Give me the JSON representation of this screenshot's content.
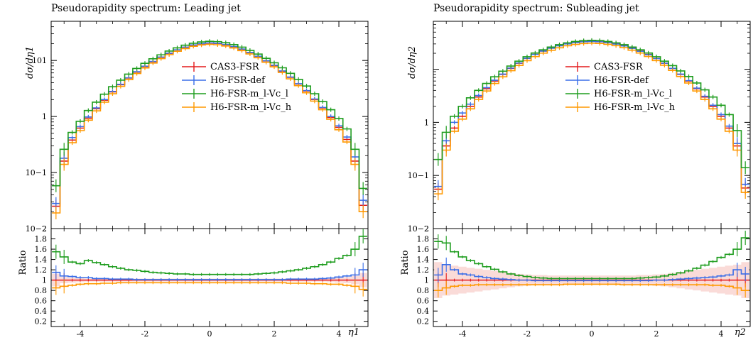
{
  "colors": {
    "cas3": "#e31a1c",
    "h6def": "#3a6ee8",
    "h6ml": "#1f9d1f",
    "h6mh": "#ff9900",
    "band": "#fadbd8"
  },
  "chart_data": [
    {
      "type": "line",
      "title": "Pseudorapidity spectrum: Leading jet",
      "xlabel": "η1",
      "ylabel": "dσ/dη1",
      "ratio_ylabel": "Ratio",
      "xlim": [
        -4.9,
        4.9
      ],
      "ylim": [
        0.01,
        50
      ],
      "yscale": "log",
      "ratio_ylim": [
        0.1,
        2.0
      ],
      "xticks": [
        "-4",
        "-2",
        "0",
        "2",
        "4"
      ],
      "yticks": [
        "10−2",
        "10−1",
        "1",
        "101"
      ],
      "ratio_yticks": [
        "0.2",
        "0.4",
        "0.6",
        "0.8",
        "1",
        "1.2",
        "1.4",
        "1.6",
        "1.8",
        "2"
      ],
      "legend_position": "center-right",
      "x": [
        -4.75,
        -4.5,
        -4.25,
        -4.0,
        -3.75,
        -3.5,
        -3.25,
        -3.0,
        -2.75,
        -2.5,
        -2.25,
        -2.0,
        -1.75,
        -1.5,
        -1.25,
        -1.0,
        -0.75,
        -0.5,
        -0.25,
        0.0,
        0.25,
        0.5,
        0.75,
        1.0,
        1.25,
        1.5,
        1.75,
        2.0,
        2.25,
        2.5,
        2.75,
        3.0,
        3.25,
        3.5,
        3.75,
        4.0,
        4.25,
        4.5,
        4.75
      ],
      "series": [
        {
          "name": "CAS3-FSR",
          "values": [
            0.025,
            0.16,
            0.38,
            0.62,
            0.93,
            1.38,
            1.95,
            2.75,
            3.7,
            4.85,
            6.2,
            7.8,
            9.5,
            11.4,
            13.4,
            15.4,
            17.2,
            18.8,
            19.9,
            20.4,
            20.1,
            19.1,
            17.6,
            15.8,
            13.8,
            11.8,
            9.8,
            8.1,
            6.4,
            5.0,
            3.8,
            2.85,
            2.02,
            1.42,
            0.96,
            0.64,
            0.39,
            0.16,
            0.026
          ]
        },
        {
          "name": "H6-FSR-def",
          "values": [
            0.028,
            0.18,
            0.42,
            0.66,
            0.98,
            1.42,
            2.0,
            2.8,
            3.75,
            4.9,
            6.3,
            7.9,
            9.6,
            11.5,
            13.5,
            15.5,
            17.3,
            18.9,
            20.0,
            20.6,
            20.3,
            19.3,
            17.8,
            16.0,
            13.9,
            11.9,
            9.9,
            8.2,
            6.5,
            5.05,
            3.85,
            2.9,
            2.05,
            1.45,
            1.0,
            0.68,
            0.43,
            0.19,
            0.032
          ]
        },
        {
          "name": "H6-FSR-m_l-Vc_l",
          "values": [
            0.058,
            0.26,
            0.52,
            0.82,
            1.28,
            1.8,
            2.5,
            3.4,
            4.45,
            5.7,
            7.2,
            8.9,
            10.7,
            12.6,
            14.7,
            16.8,
            18.7,
            20.3,
            21.4,
            22.0,
            21.7,
            20.7,
            19.2,
            17.3,
            15.1,
            13.0,
            10.9,
            9.1,
            7.4,
            5.9,
            4.6,
            3.5,
            2.55,
            1.85,
            1.32,
            0.92,
            0.6,
            0.26,
            0.052
          ]
        },
        {
          "name": "H6-FSR-m_l-Vc_h",
          "values": [
            0.019,
            0.14,
            0.34,
            0.56,
            0.86,
            1.26,
            1.8,
            2.55,
            3.45,
            4.55,
            5.85,
            7.35,
            9.0,
            10.8,
            12.7,
            14.6,
            16.3,
            17.9,
            18.9,
            19.4,
            19.1,
            18.1,
            16.7,
            15.0,
            13.1,
            11.2,
            9.3,
            7.7,
            6.1,
            4.7,
            3.55,
            2.65,
            1.88,
            1.32,
            0.89,
            0.58,
            0.35,
            0.14,
            0.02
          ]
        }
      ],
      "ratios": [
        {
          "name": "CAS3-FSR",
          "values": [
            1.0,
            1.0,
            1.0,
            1.0,
            1.0,
            1.0,
            1.0,
            1.0,
            1.0,
            1.0,
            1.0,
            1.0,
            1.0,
            1.0,
            1.0,
            1.0,
            1.0,
            1.0,
            1.0,
            1.0,
            1.0,
            1.0,
            1.0,
            1.0,
            1.0,
            1.0,
            1.0,
            1.0,
            1.0,
            1.0,
            1.0,
            1.0,
            1.0,
            1.0,
            1.0,
            1.0,
            1.0,
            1.0,
            1.0
          ]
        },
        {
          "name": "H6-FSR-def",
          "values": [
            1.15,
            1.08,
            1.07,
            1.05,
            1.05,
            1.03,
            1.03,
            1.02,
            1.02,
            1.02,
            1.01,
            1.01,
            1.01,
            1.01,
            1.01,
            1.01,
            1.01,
            1.01,
            1.01,
            1.01,
            1.01,
            1.01,
            1.01,
            1.01,
            1.01,
            1.01,
            1.01,
            1.01,
            1.01,
            1.02,
            1.02,
            1.02,
            1.02,
            1.03,
            1.04,
            1.06,
            1.08,
            1.1,
            1.2
          ]
        },
        {
          "name": "H6-FSR-m_l-Vc_l",
          "values": [
            1.55,
            1.45,
            1.35,
            1.32,
            1.38,
            1.34,
            1.3,
            1.26,
            1.23,
            1.2,
            1.19,
            1.17,
            1.15,
            1.14,
            1.13,
            1.12,
            1.12,
            1.11,
            1.11,
            1.11,
            1.11,
            1.11,
            1.11,
            1.11,
            1.11,
            1.12,
            1.13,
            1.14,
            1.16,
            1.18,
            1.2,
            1.23,
            1.26,
            1.3,
            1.35,
            1.42,
            1.48,
            1.6,
            1.85
          ]
        },
        {
          "name": "H6-FSR-m_l-Vc_h",
          "values": [
            0.85,
            0.88,
            0.9,
            0.92,
            0.93,
            0.93,
            0.94,
            0.94,
            0.95,
            0.95,
            0.95,
            0.95,
            0.95,
            0.95,
            0.95,
            0.95,
            0.95,
            0.95,
            0.95,
            0.95,
            0.95,
            0.95,
            0.95,
            0.95,
            0.95,
            0.95,
            0.95,
            0.95,
            0.95,
            0.94,
            0.94,
            0.94,
            0.93,
            0.93,
            0.92,
            0.92,
            0.9,
            0.88,
            0.82
          ]
        }
      ],
      "band_halfwidth": [
        0.12,
        0.06,
        0.05,
        0.04,
        0.03,
        0.03,
        0.03,
        0.03,
        0.03,
        0.03,
        0.03,
        0.03,
        0.03,
        0.03,
        0.03,
        0.03,
        0.03,
        0.03,
        0.03,
        0.03,
        0.03,
        0.03,
        0.03,
        0.03,
        0.03,
        0.03,
        0.03,
        0.03,
        0.03,
        0.03,
        0.03,
        0.03,
        0.03,
        0.03,
        0.04,
        0.05,
        0.06,
        0.08,
        0.14
      ]
    },
    {
      "type": "line",
      "title": "Pseudorapidity spectrum: Subleading jet",
      "xlabel": "η2",
      "ylabel": "dσ/dη2",
      "ratio_ylabel": "Ratio",
      "xlim": [
        -4.9,
        4.9
      ],
      "ylim": [
        0.001,
        8
      ],
      "yscale": "log",
      "ratio_ylim": [
        0.1,
        2.0
      ],
      "xticks": [
        "-4",
        "-2",
        "0",
        "2",
        "4"
      ],
      "yticks": [
        "10−2",
        "10−1",
        "1"
      ],
      "ratio_yticks": [
        "0.2",
        "0.4",
        "0.6",
        "0.8",
        "1",
        "1.2",
        "1.4",
        "1.6",
        "1.8",
        "2"
      ],
      "legend_position": "center-right",
      "x": [
        -4.75,
        -4.5,
        -4.25,
        -4.0,
        -3.75,
        -3.5,
        -3.25,
        -3.0,
        -2.75,
        -2.5,
        -2.25,
        -2.0,
        -1.75,
        -1.5,
        -1.25,
        -1.0,
        -0.75,
        -0.5,
        -0.25,
        0.0,
        0.25,
        0.5,
        0.75,
        1.0,
        1.25,
        1.5,
        1.75,
        2.0,
        2.25,
        2.5,
        2.75,
        3.0,
        3.25,
        3.5,
        3.75,
        4.0,
        4.25,
        4.5,
        4.75
      ],
      "series": [
        {
          "name": "CAS3-FSR",
          "values": [
            0.0055,
            0.036,
            0.078,
            0.13,
            0.2,
            0.3,
            0.43,
            0.6,
            0.8,
            1.04,
            1.3,
            1.6,
            1.9,
            2.2,
            2.5,
            2.78,
            3.02,
            3.2,
            3.32,
            3.37,
            3.33,
            3.21,
            3.02,
            2.78,
            2.5,
            2.2,
            1.9,
            1.6,
            1.3,
            1.04,
            0.8,
            0.6,
            0.43,
            0.3,
            0.2,
            0.13,
            0.078,
            0.036,
            0.0058
          ]
        },
        {
          "name": "H6-FSR-def",
          "values": [
            0.0062,
            0.045,
            0.1,
            0.15,
            0.22,
            0.32,
            0.45,
            0.62,
            0.81,
            1.05,
            1.31,
            1.61,
            1.9,
            2.2,
            2.5,
            2.77,
            3.0,
            3.18,
            3.29,
            3.33,
            3.29,
            3.17,
            2.98,
            2.75,
            2.48,
            2.18,
            1.88,
            1.59,
            1.3,
            1.04,
            0.81,
            0.61,
            0.44,
            0.31,
            0.21,
            0.14,
            0.085,
            0.04,
            0.0068
          ]
        },
        {
          "name": "H6-FSR-m_l-Vc_l",
          "values": [
            0.02,
            0.065,
            0.13,
            0.2,
            0.29,
            0.4,
            0.54,
            0.72,
            0.92,
            1.15,
            1.42,
            1.72,
            2.02,
            2.32,
            2.62,
            2.9,
            3.14,
            3.33,
            3.45,
            3.5,
            3.46,
            3.33,
            3.14,
            2.9,
            2.62,
            2.32,
            2.02,
            1.72,
            1.42,
            1.17,
            0.93,
            0.73,
            0.55,
            0.41,
            0.3,
            0.21,
            0.14,
            0.07,
            0.014
          ]
        },
        {
          "name": "H6-FSR-m_l-Vc_h",
          "values": [
            0.0045,
            0.03,
            0.068,
            0.115,
            0.18,
            0.27,
            0.39,
            0.54,
            0.72,
            0.94,
            1.18,
            1.45,
            1.73,
            2.01,
            2.28,
            2.54,
            2.77,
            2.94,
            3.05,
            3.1,
            3.06,
            2.95,
            2.78,
            2.55,
            2.29,
            2.02,
            1.74,
            1.46,
            1.19,
            0.95,
            0.73,
            0.55,
            0.39,
            0.27,
            0.18,
            0.115,
            0.068,
            0.03,
            0.0048
          ]
        }
      ],
      "ratios": [
        {
          "name": "CAS3-FSR",
          "values": [
            1.0,
            1.0,
            1.0,
            1.0,
            1.0,
            1.0,
            1.0,
            1.0,
            1.0,
            1.0,
            1.0,
            1.0,
            1.0,
            1.0,
            1.0,
            1.0,
            1.0,
            1.0,
            1.0,
            1.0,
            1.0,
            1.0,
            1.0,
            1.0,
            1.0,
            1.0,
            1.0,
            1.0,
            1.0,
            1.0,
            1.0,
            1.0,
            1.0,
            1.0,
            1.0,
            1.0,
            1.0,
            1.0,
            1.0
          ]
        },
        {
          "name": "H6-FSR-def",
          "values": [
            1.1,
            1.3,
            1.2,
            1.12,
            1.1,
            1.07,
            1.05,
            1.03,
            1.02,
            1.01,
            1.0,
            1.0,
            0.99,
            0.99,
            0.99,
            0.99,
            0.99,
            0.99,
            0.99,
            0.99,
            0.99,
            0.99,
            0.99,
            0.99,
            0.99,
            0.99,
            0.99,
            1.0,
            1.0,
            1.01,
            1.02,
            1.03,
            1.04,
            1.05,
            1.06,
            1.08,
            1.1,
            1.2,
            1.12
          ]
        },
        {
          "name": "H6-FSR-m_l-Vc_l",
          "values": [
            1.75,
            1.72,
            1.55,
            1.45,
            1.38,
            1.32,
            1.26,
            1.21,
            1.16,
            1.12,
            1.09,
            1.07,
            1.05,
            1.04,
            1.03,
            1.03,
            1.03,
            1.03,
            1.03,
            1.03,
            1.03,
            1.03,
            1.03,
            1.03,
            1.03,
            1.04,
            1.05,
            1.06,
            1.08,
            1.11,
            1.14,
            1.18,
            1.23,
            1.29,
            1.36,
            1.44,
            1.5,
            1.6,
            1.82
          ]
        },
        {
          "name": "H6-FSR-m_l-Vc_h",
          "values": [
            0.8,
            0.85,
            0.88,
            0.9,
            0.9,
            0.91,
            0.91,
            0.91,
            0.91,
            0.91,
            0.91,
            0.91,
            0.91,
            0.91,
            0.91,
            0.91,
            0.92,
            0.92,
            0.92,
            0.92,
            0.92,
            0.92,
            0.92,
            0.91,
            0.91,
            0.91,
            0.91,
            0.91,
            0.91,
            0.91,
            0.91,
            0.91,
            0.91,
            0.91,
            0.9,
            0.9,
            0.88,
            0.85,
            0.8
          ]
        }
      ],
      "band_halfwidth": [
        0.35,
        0.3,
        0.28,
        0.26,
        0.24,
        0.22,
        0.2,
        0.18,
        0.16,
        0.14,
        0.12,
        0.11,
        0.1,
        0.1,
        0.09,
        0.09,
        0.09,
        0.09,
        0.09,
        0.09,
        0.09,
        0.09,
        0.09,
        0.09,
        0.09,
        0.1,
        0.1,
        0.11,
        0.12,
        0.14,
        0.16,
        0.18,
        0.2,
        0.22,
        0.24,
        0.26,
        0.28,
        0.3,
        0.35
      ]
    }
  ]
}
